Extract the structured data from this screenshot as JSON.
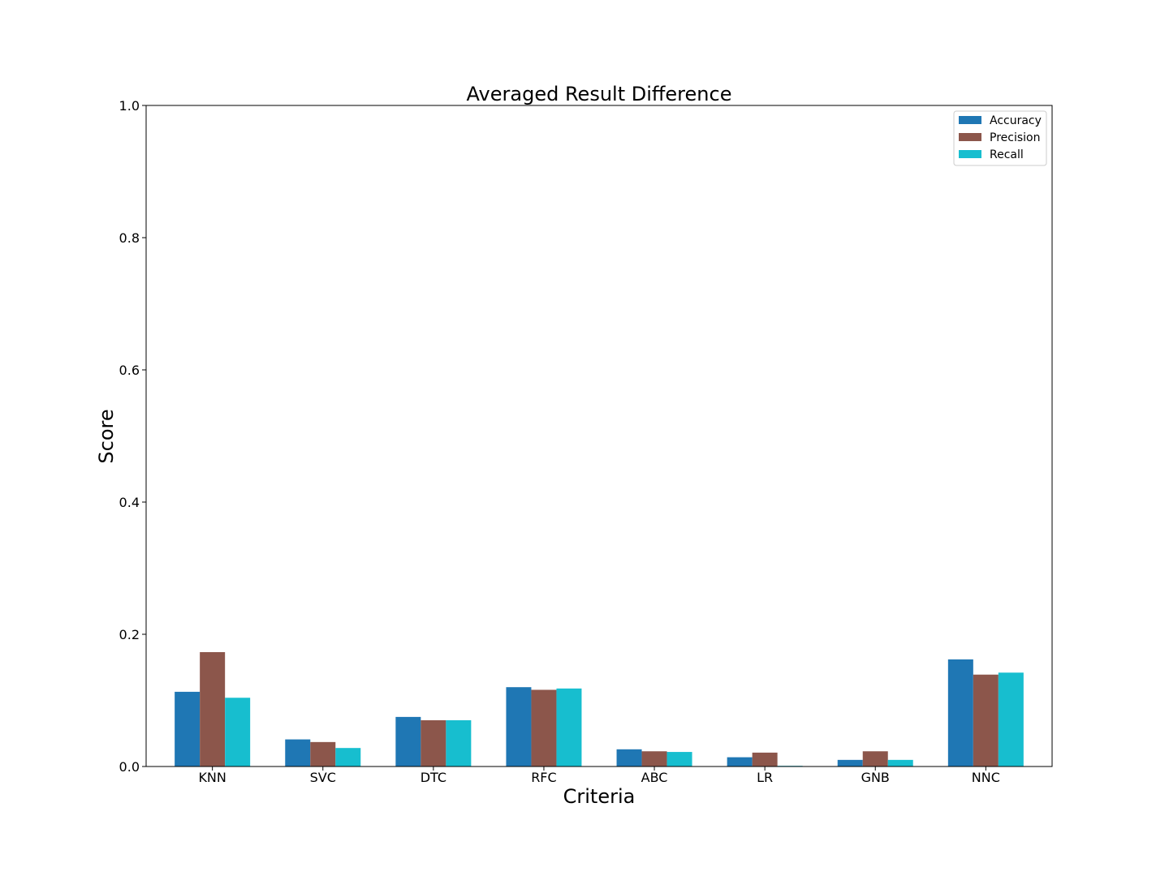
{
  "chart_data": {
    "type": "bar",
    "title": "Averaged Result Difference",
    "xlabel": "Criteria",
    "ylabel": "Score",
    "ylim": [
      0,
      1.0
    ],
    "yticks": [
      "0.0",
      "0.2",
      "0.4",
      "0.6",
      "0.8",
      "1.0"
    ],
    "categories": [
      "KNN",
      "SVC",
      "DTC",
      "RFC",
      "ABC",
      "LR",
      "GNB",
      "NNC"
    ],
    "series": [
      {
        "name": "Accuracy",
        "color": "#1f77b4",
        "values": [
          0.113,
          0.041,
          0.075,
          0.12,
          0.026,
          0.014,
          0.01,
          0.162
        ]
      },
      {
        "name": "Precision",
        "color": "#8c564b",
        "values": [
          0.173,
          0.037,
          0.07,
          0.116,
          0.023,
          0.021,
          0.023,
          0.139
        ]
      },
      {
        "name": "Recall",
        "color": "#17becf",
        "values": [
          0.104,
          0.028,
          0.07,
          0.118,
          0.022,
          0.001,
          0.01,
          0.142
        ]
      }
    ],
    "grid": false,
    "legend": "top-right"
  }
}
